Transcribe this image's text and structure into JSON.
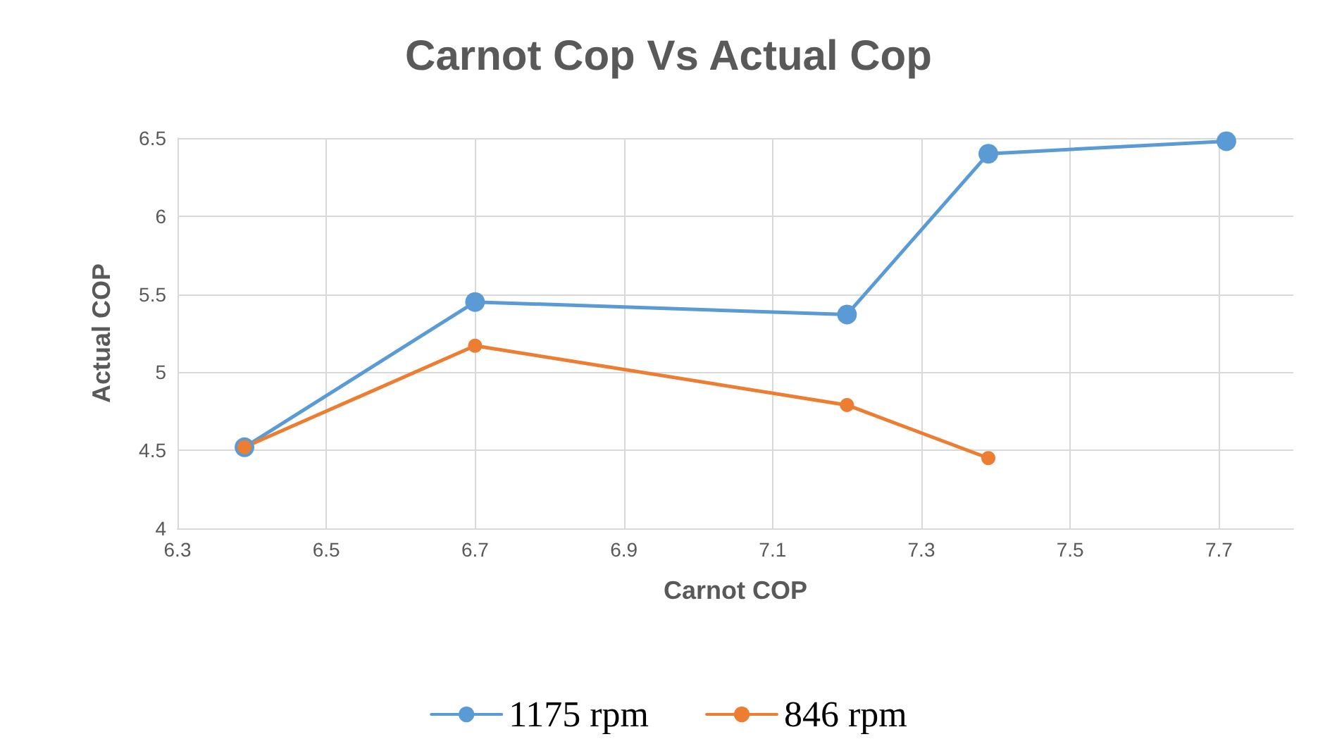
{
  "chart_data": {
    "type": "line",
    "title": "Carnot Cop Vs Actual Cop",
    "xlabel": "Carnot COP",
    "ylabel": "Actual COP",
    "xlim": [
      6.3,
      7.8
    ],
    "xticks": [
      6.3,
      6.5,
      6.7,
      6.9,
      7.1,
      7.3,
      7.5,
      7.7
    ],
    "ylim": [
      4,
      6.5
    ],
    "yticks": [
      4,
      4.5,
      5,
      5.5,
      6,
      6.5
    ],
    "series": [
      {
        "name": "1175 rpm",
        "color": "#5b9bd5",
        "x": [
          6.39,
          6.7,
          7.2,
          7.39,
          7.71
        ],
        "values": [
          4.52,
          5.45,
          5.37,
          6.4,
          6.48
        ]
      },
      {
        "name": "846 rpm",
        "color": "#ed7d31",
        "x": [
          6.39,
          6.7,
          7.2,
          7.39
        ],
        "values": [
          4.52,
          5.17,
          4.79,
          4.45
        ]
      }
    ],
    "grid": true,
    "legend": "bottom",
    "marker": "circle",
    "line_style": "solid"
  }
}
